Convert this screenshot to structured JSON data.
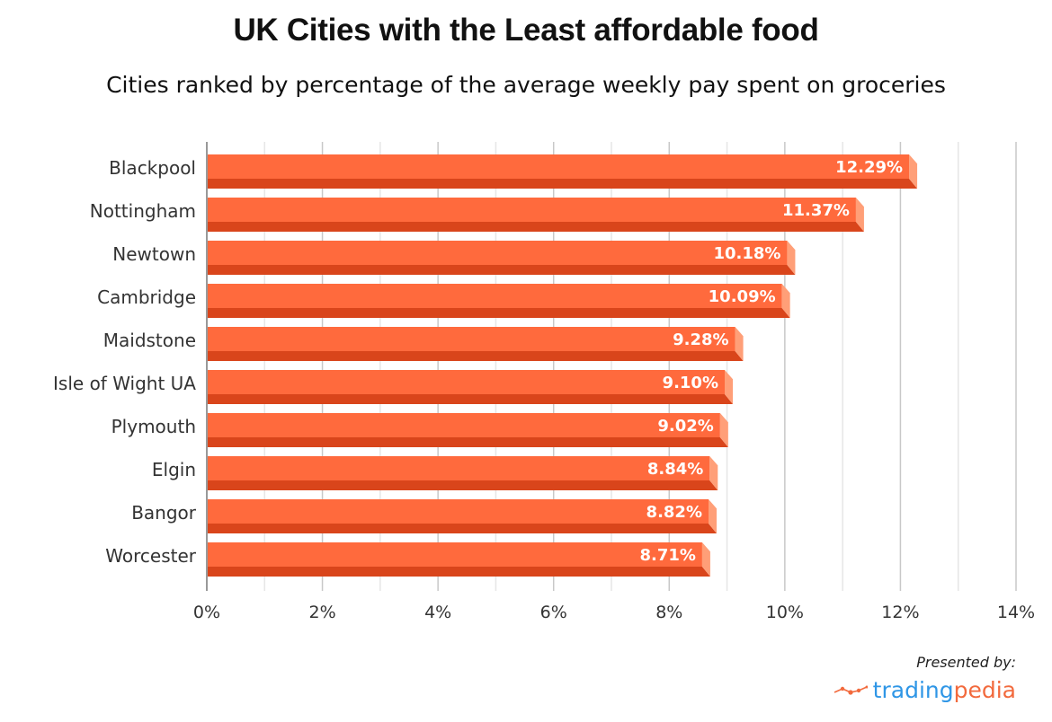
{
  "chart_data": {
    "type": "bar",
    "orientation": "horizontal",
    "title": "UK Cities with the Least affordable food",
    "subtitle": "Cities ranked by percentage of the average weekly pay spent on groceries",
    "xlabel": "",
    "ylabel": "",
    "categories": [
      "Blackpool",
      "Nottingham",
      "Newtown",
      "Cambridge",
      "Maidstone",
      "Isle of Wight UA",
      "Plymouth",
      "Elgin",
      "Bangor",
      "Worcester"
    ],
    "values": [
      12.29,
      11.37,
      10.18,
      10.09,
      9.28,
      9.1,
      9.02,
      8.84,
      8.82,
      8.71
    ],
    "value_labels": [
      "12.29%",
      "11.37%",
      "10.18%",
      "10.09%",
      "9.28%",
      "9.10%",
      "9.02%",
      "8.84%",
      "8.82%",
      "8.71%"
    ],
    "xlim": [
      0,
      14
    ],
    "x_ticks": [
      0,
      2,
      4,
      6,
      8,
      10,
      12,
      14
    ],
    "x_tick_labels": [
      "0%",
      "2%",
      "4%",
      "6%",
      "8%",
      "10%",
      "12%",
      "14%"
    ],
    "minor_grid_step": 1,
    "grid": true,
    "legend": "none",
    "colors": {
      "bar_top": "#ff6a3d",
      "bar_bottom": "#d9451b",
      "bar_cap": "#ff9f78",
      "grid_major": "#c8c8c8",
      "grid_minor": "#e6e6e6",
      "axis": "#999999"
    }
  },
  "footer": {
    "presented_by": "Presented by:",
    "logo_part1": "trading",
    "logo_part2": "pedia"
  }
}
